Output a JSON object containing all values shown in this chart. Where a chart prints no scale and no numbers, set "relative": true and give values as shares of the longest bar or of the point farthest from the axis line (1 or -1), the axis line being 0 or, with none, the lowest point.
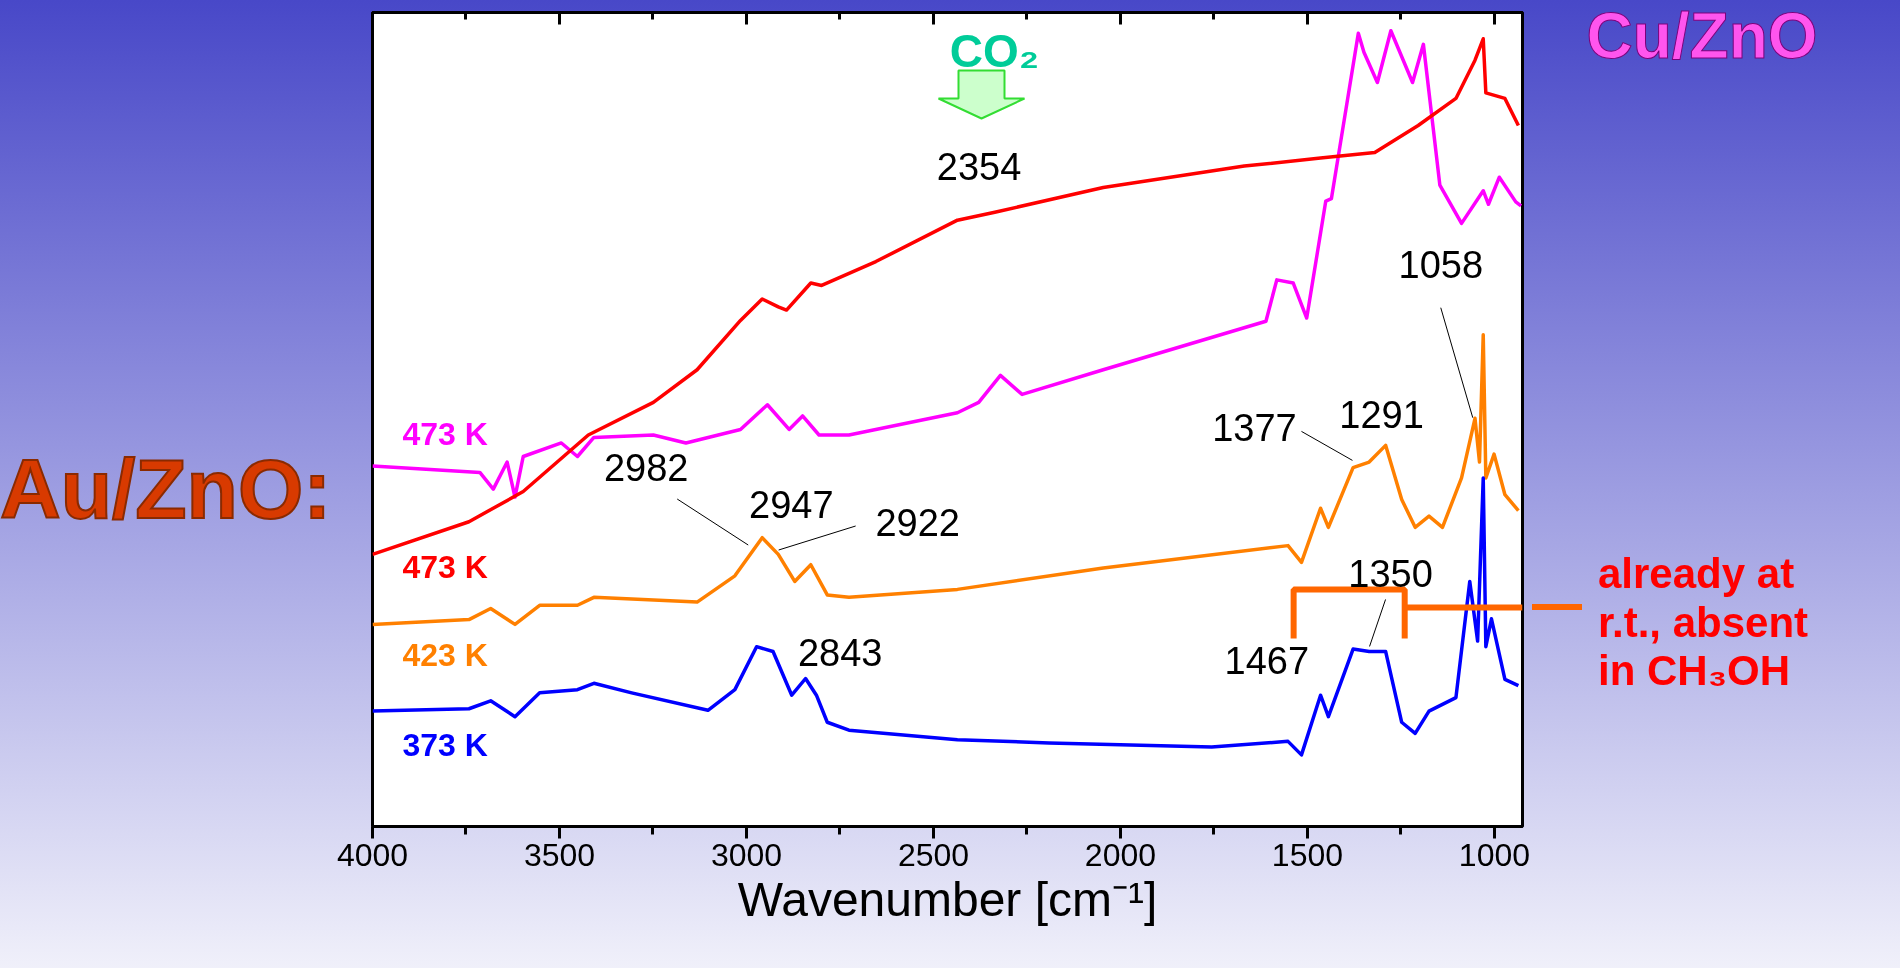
{
  "chart_data": {
    "type": "line",
    "relative": true,
    "xlabel": "Wavenumber [cm⁻¹]",
    "xlim": [
      4000,
      925
    ],
    "xticks": [
      4000,
      {
        "value": 3750,
        "label": null
      },
      3500,
      {
        "value": 3250,
        "label": null
      },
      3000,
      {
        "value": 2750,
        "label": null
      },
      2500,
      {
        "value": 2250,
        "label": null
      },
      2000,
      {
        "value": 1750,
        "label": null
      },
      1500,
      {
        "value": 1250,
        "label": null
      },
      1000
    ],
    "grid": false,
    "line_style": "solid",
    "series": [
      {
        "name": "473 K",
        "color": "#ff00ff",
        "x": [
          4000,
          3713,
          3677,
          3640,
          3619,
          3597,
          3495,
          3452,
          3408,
          3249,
          3162,
          3016,
          2944,
          2886,
          2850,
          2806,
          2726,
          2436,
          2379,
          2321,
          2263,
          2046,
          1611,
          1582,
          1538,
          1502,
          1451,
          1436,
          1364,
          1349,
          1313,
          1277,
          1219,
          1190,
          1146,
          1088,
          1030,
          1016,
          987,
          943,
          929
        ],
        "values": [
          0.453,
          0.445,
          0.424,
          0.458,
          0.414,
          0.465,
          0.482,
          0.465,
          0.489,
          0.492,
          0.482,
          0.499,
          0.53,
          0.499,
          0.516,
          0.492,
          0.492,
          0.52,
          0.533,
          0.567,
          0.543,
          0.574,
          0.635,
          0.687,
          0.683,
          0.639,
          0.786,
          0.789,
          0.997,
          0.973,
          0.935,
          1,
          0.935,
          0.983,
          0.806,
          0.758,
          0.799,
          0.782,
          0.816,
          0.785,
          0.78
        ]
      },
      {
        "name": "473 K",
        "color": "#ff0000",
        "x": [
          4000,
          3742,
          3597,
          3423,
          3249,
          3132,
          3016,
          2958,
          2915,
          2893,
          2828,
          2799,
          2654,
          2436,
          2336,
          2046,
          1669,
          1465,
          1320,
          1204,
          1103,
          1052,
          1030,
          1023,
          972,
          936
        ],
        "values": [
          0.342,
          0.383,
          0.421,
          0.492,
          0.533,
          0.574,
          0.636,
          0.663,
          0.653,
          0.649,
          0.683,
          0.68,
          0.71,
          0.762,
          0.772,
          0.803,
          0.83,
          0.84,
          0.847,
          0.881,
          0.915,
          0.963,
          0.99,
          0.922,
          0.915,
          0.881
        ]
      },
      {
        "name": "423 K",
        "color": "#ff8000",
        "x": [
          4000,
          3742,
          3684,
          3619,
          3553,
          3452,
          3408,
          3132,
          3031,
          2958,
          2915,
          2871,
          2828,
          2784,
          2726,
          2436,
          2046,
          1552,
          1516,
          1465,
          1444,
          1378,
          1335,
          1291,
          1248,
          1212,
          1175,
          1139,
          1088,
          1052,
          1040,
          1030,
          1023,
          1001,
          972,
          936
        ],
        "values": [
          0.254,
          0.26,
          0.274,
          0.254,
          0.278,
          0.278,
          0.288,
          0.282,
          0.315,
          0.363,
          0.342,
          0.308,
          0.329,
          0.291,
          0.288,
          0.298,
          0.325,
          0.353,
          0.332,
          0.4,
          0.376,
          0.451,
          0.458,
          0.479,
          0.411,
          0.376,
          0.39,
          0.376,
          0.438,
          0.513,
          0.458,
          0.618,
          0.438,
          0.468,
          0.417,
          0.397
        ]
      },
      {
        "name": "373 K",
        "color": "#0000ff",
        "x": [
          4000,
          3742,
          3684,
          3619,
          3553,
          3452,
          3408,
          3307,
          3103,
          3031,
          2973,
          2929,
          2879,
          2842,
          2813,
          2784,
          2726,
          2436,
          2191,
          1756,
          1552,
          1516,
          1465,
          1444,
          1378,
          1335,
          1291,
          1248,
          1212,
          1175,
          1103,
          1066,
          1045,
          1030,
          1023,
          1008,
          972,
          936
        ],
        "values": [
          0.145,
          0.148,
          0.158,
          0.138,
          0.168,
          0.172,
          0.18,
          0.168,
          0.146,
          0.172,
          0.226,
          0.22,
          0.165,
          0.186,
          0.165,
          0.131,
          0.121,
          0.109,
          0.105,
          0.1,
          0.107,
          0.09,
          0.165,
          0.138,
          0.223,
          0.22,
          0.22,
          0.131,
          0.117,
          0.145,
          0.162,
          0.308,
          0.233,
          0.438,
          0.226,
          0.261,
          0.185,
          0.177
        ]
      }
    ],
    "annotations": [
      "CO₂",
      "Au/ZnO:",
      "Cu/ZnO",
      "already at r.t., absent in CH₃OH",
      {
        "text": "2354",
        "x": 2354,
        "y": 0.77
      },
      {
        "text": "2982",
        "x": 2982,
        "y": 0.355
      },
      {
        "text": "2947",
        "x": 2947,
        "y": 0.36
      },
      {
        "text": "2922",
        "x": 2922,
        "y": 0.35
      },
      {
        "text": "2843",
        "x": 2843,
        "y": 0.19
      },
      {
        "text": "1377",
        "x": 1377,
        "y": 0.44
      },
      {
        "text": "1291",
        "x": 1291,
        "y": 0.479
      },
      {
        "text": "1058",
        "x": 1058,
        "y": 0.51
      },
      {
        "text": "1350",
        "x": 1350,
        "y": 0.22
      },
      {
        "text": "1467",
        "x": 1467,
        "y": 0.16
      }
    ]
  }
}
